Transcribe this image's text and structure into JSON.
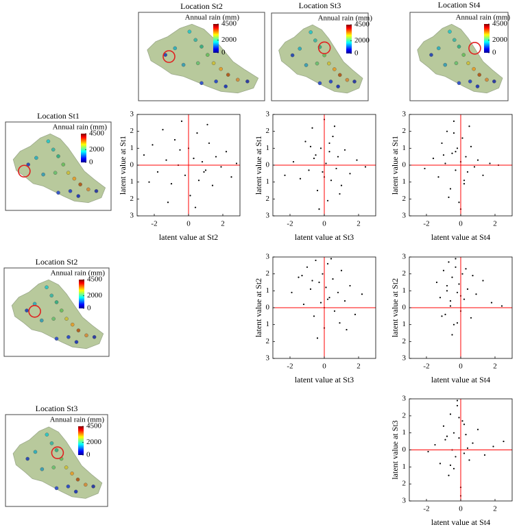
{
  "chart_data": [
    {
      "type": "map",
      "title": "Location St2",
      "colorbar_label": "Annual rain (mm)",
      "clim": [
        0,
        4500
      ],
      "cticks": [
        0,
        2000,
        4500
      ]
    },
    {
      "type": "map",
      "title": "Location St3",
      "colorbar_label": "Annual rain (mm)",
      "clim": [
        0,
        4500
      ],
      "cticks": [
        0,
        2000,
        4500
      ]
    },
    {
      "type": "map",
      "title": "Location St4",
      "colorbar_label": "Annual rain (mm)",
      "clim": [
        0,
        4500
      ],
      "cticks": [
        0,
        2000,
        4500
      ]
    },
    {
      "type": "map",
      "title": "Location St1",
      "colorbar_label": "Annual rain (mm)",
      "clim": [
        0,
        4500
      ],
      "cticks": [
        0,
        2000,
        4500
      ]
    },
    {
      "type": "scatter",
      "xlabel": "latent value at St2",
      "ylabel": "latent value at St1",
      "xlim": [
        -3,
        3
      ],
      "ylim": [
        -3,
        3
      ],
      "xticks": [
        -2,
        0,
        2
      ],
      "yticks": [
        {
          "value": -3,
          "label": "3"
        },
        {
          "value": -2,
          "label": "2"
        },
        {
          "value": -1,
          "label": "1"
        },
        0,
        1,
        2,
        3
      ],
      "reference_lines": {
        "x": 0,
        "y": 0
      },
      "color": "#000000",
      "reference_color": "#ff0000",
      "x": [
        -2.6,
        -2.1,
        -1.8,
        -1.5,
        -1.3,
        -1.0,
        -0.8,
        -0.6,
        -0.4,
        -0.2,
        0.0,
        0.1,
        0.3,
        0.5,
        0.6,
        0.8,
        1.0,
        1.2,
        1.4,
        1.6,
        1.9,
        2.2,
        2.5,
        2.8,
        -1.2,
        0.4,
        -0.5,
        1.1,
        -2.3,
        0.9
      ],
      "y": [
        0.6,
        1.2,
        -0.4,
        2.1,
        0.3,
        -1.1,
        1.5,
        0.0,
        2.6,
        -0.6,
        1.0,
        -1.8,
        0.4,
        1.9,
        -0.9,
        0.2,
        -0.3,
        1.3,
        -1.2,
        0.5,
        -0.1,
        0.8,
        -0.7,
        0.1,
        -2.2,
        -2.5,
        0.9,
        2.4,
        -1.0,
        -0.4
      ]
    },
    {
      "type": "scatter",
      "xlabel": "latent value at St3",
      "ylabel": "latent value at St1",
      "xlim": [
        -3,
        3
      ],
      "ylim": [
        -3,
        3
      ],
      "xticks": [
        -2,
        0,
        2
      ],
      "yticks": [
        {
          "value": -3,
          "label": "3"
        },
        {
          "value": -2,
          "label": "2"
        },
        {
          "value": -1,
          "label": "1"
        },
        0,
        1,
        2,
        3
      ],
      "reference_lines": {
        "x": 0,
        "y": 0
      },
      "color": "#000000",
      "reference_color": "#ff0000",
      "x": [
        -1.8,
        -1.4,
        -1.1,
        -0.9,
        -0.7,
        -0.5,
        -0.4,
        -0.2,
        -0.1,
        0.0,
        0.1,
        0.2,
        0.3,
        0.4,
        0.5,
        0.7,
        0.8,
        1.0,
        1.2,
        1.5,
        1.9,
        2.4,
        -2.3,
        -0.3,
        0.6,
        -0.8,
        0.9,
        0.0,
        -0.6,
        0.3
      ],
      "y": [
        0.2,
        -0.8,
        1.4,
        -0.3,
        2.2,
        0.6,
        -1.5,
        1.0,
        -0.4,
        2.7,
        0.1,
        -2.1,
        0.8,
        -0.9,
        1.7,
        -0.2,
        0.5,
        -1.2,
        0.9,
        -0.5,
        0.3,
        -0.1,
        -0.6,
        -2.6,
        2.3,
        1.1,
        -1.7,
        -0.7,
        0.4,
        1.3
      ]
    },
    {
      "type": "scatter",
      "xlabel": "latent value at St4",
      "ylabel": "latent value at St1",
      "xlim": [
        -3,
        3
      ],
      "ylim": [
        -3,
        3
      ],
      "xticks": [
        -2,
        0,
        2
      ],
      "yticks": [
        {
          "value": -3,
          "label": "3"
        },
        {
          "value": -2,
          "label": "2"
        },
        {
          "value": -1,
          "label": "1"
        },
        0,
        1,
        2,
        3
      ],
      "reference_lines": {
        "x": 0,
        "y": 0
      },
      "color": "#000000",
      "reference_color": "#ff0000",
      "x": [
        -1.6,
        -1.3,
        -1.1,
        -0.9,
        -0.8,
        -0.6,
        -0.5,
        -0.4,
        -0.3,
        -0.2,
        -0.1,
        0.0,
        0.1,
        0.2,
        0.3,
        0.4,
        0.6,
        0.8,
        1.0,
        1.3,
        1.7,
        2.2,
        -2.1,
        -0.7,
        0.5,
        -0.3,
        0.2,
        -1.0,
        0.0,
        -0.4
      ],
      "y": [
        0.4,
        -0.7,
        1.3,
        0.1,
        2.0,
        -1.4,
        0.7,
        2.6,
        -0.3,
        1.0,
        -2.2,
        0.2,
        1.6,
        -0.9,
        0.5,
        -0.4,
        1.1,
        -0.1,
        0.3,
        -0.6,
        0.1,
        0.0,
        -0.2,
        -1.9,
        2.3,
        0.8,
        -1.1,
        0.6,
        -2.6,
        1.9
      ]
    },
    {
      "type": "map",
      "title": "Location St2",
      "colorbar_label": "Annual rain (mm)",
      "clim": [
        0,
        4500
      ],
      "cticks": [
        0,
        2000,
        4500
      ]
    },
    {
      "type": "scatter",
      "xlabel": "latent value at St3",
      "ylabel": "latent value at St2",
      "xlim": [
        -3,
        3
      ],
      "ylim": [
        -3,
        3
      ],
      "xticks": [
        -2,
        0,
        2
      ],
      "yticks": [
        {
          "value": -3,
          "label": "3"
        },
        {
          "value": -2,
          "label": "2"
        },
        {
          "value": -1,
          "label": "1"
        },
        0,
        1,
        2,
        3
      ],
      "reference_lines": {
        "x": 0,
        "y": 0
      },
      "color": "#000000",
      "reference_color": "#ff0000",
      "x": [
        -1.9,
        -1.5,
        -1.2,
        -1.0,
        -0.8,
        -0.6,
        -0.5,
        -0.3,
        -0.2,
        -0.1,
        0.0,
        0.1,
        0.2,
        0.3,
        0.5,
        0.6,
        0.8,
        1.0,
        1.2,
        1.5,
        1.8,
        2.2,
        -0.4,
        0.4,
        -0.7,
        0.9,
        0.0,
        -1.3,
        1.3,
        0.2
      ],
      "y": [
        0.9,
        1.8,
        0.2,
        2.4,
        1.1,
        -0.5,
        2.8,
        1.5,
        0.3,
        2.0,
        -1.2,
        1.2,
        2.6,
        0.6,
        1.7,
        -0.2,
        0.9,
        2.2,
        0.4,
        1.3,
        -0.4,
        0.8,
        -1.8,
        2.9,
        1.6,
        -0.9,
        0.0,
        1.9,
        -1.3,
        0.5
      ]
    },
    {
      "type": "scatter",
      "xlabel": "latent value at St4",
      "ylabel": "latent value at St2",
      "xlim": [
        -3,
        3
      ],
      "ylim": [
        -3,
        3
      ],
      "xticks": [
        -2,
        0,
        2
      ],
      "yticks": [
        {
          "value": -3,
          "label": "3"
        },
        {
          "value": -2,
          "label": "2"
        },
        {
          "value": -1,
          "label": "1"
        },
        0,
        1,
        2,
        3
      ],
      "reference_lines": {
        "x": 0,
        "y": 0
      },
      "color": "#000000",
      "reference_color": "#ff0000",
      "x": [
        -1.4,
        -1.2,
        -1.0,
        -0.9,
        -0.8,
        -0.7,
        -0.6,
        -0.5,
        -0.4,
        -0.3,
        -0.2,
        -0.1,
        0.0,
        0.1,
        0.2,
        0.4,
        0.6,
        0.9,
        1.3,
        1.8,
        2.4,
        -0.5,
        -0.3,
        -0.8,
        0.0,
        -0.2,
        0.3,
        -1.1,
        -0.6,
        0.7
      ],
      "y": [
        1.5,
        0.6,
        2.2,
        -0.4,
        1.0,
        2.7,
        0.1,
        1.8,
        -1.0,
        2.4,
        0.9,
        1.4,
        -0.2,
        2.0,
        0.5,
        1.1,
        -0.6,
        0.8,
        1.6,
        0.3,
        0.1,
        -1.6,
        2.9,
        1.3,
        0.7,
        -0.9,
        2.3,
        -0.5,
        0.4,
        1.9
      ]
    },
    {
      "type": "map",
      "title": "Location St3",
      "colorbar_label": "Annual rain (mm)",
      "clim": [
        0,
        4500
      ],
      "cticks": [
        0,
        2000,
        4500
      ]
    },
    {
      "type": "scatter",
      "xlabel": "latent value at St4",
      "ylabel": "latent value at St3",
      "xlim": [
        -3,
        3
      ],
      "ylim": [
        -3,
        3
      ],
      "xticks": [
        -2,
        0,
        2
      ],
      "yticks": [
        {
          "value": -3,
          "label": "3"
        },
        {
          "value": -2,
          "label": "2"
        },
        {
          "value": -1,
          "label": "1"
        },
        0,
        1,
        2,
        3
      ],
      "reference_lines": {
        "x": 0,
        "y": 0
      },
      "color": "#000000",
      "reference_color": "#ff0000",
      "x": [
        -1.5,
        -1.2,
        -1.0,
        -0.9,
        -0.7,
        -0.6,
        -0.5,
        -0.4,
        -0.3,
        -0.2,
        -0.1,
        0.0,
        0.1,
        0.2,
        0.3,
        0.5,
        0.7,
        1.0,
        1.4,
        1.9,
        2.5,
        -0.4,
        -0.2,
        -0.8,
        0.0,
        0.2,
        -0.6,
        -1.9,
        0.4,
        -0.1
      ],
      "y": [
        0.3,
        -0.8,
        1.4,
        0.6,
        -1.5,
        2.1,
        0.0,
        1.0,
        -0.4,
        2.6,
        0.7,
        -2.2,
        1.7,
        -0.2,
        0.9,
        -0.6,
        0.4,
        1.2,
        -0.3,
        0.2,
        0.5,
        -1.1,
        2.9,
        0.8,
        -2.7,
        1.5,
        -0.9,
        -0.1,
        0.1,
        1.9
      ]
    }
  ]
}
